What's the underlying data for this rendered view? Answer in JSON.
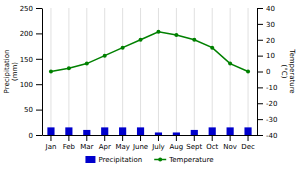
{
  "chart_data": {
    "type": "bar",
    "categories": [
      "Jan",
      "Feb",
      "Mar",
      "Apr",
      "May",
      "June",
      "July",
      "Aug",
      "Sept",
      "Oct",
      "Nov",
      "Dec"
    ],
    "series": [
      {
        "name": "Precipitation",
        "type": "bar",
        "color": "#0000cc",
        "values": [
          15,
          15,
          10,
          15,
          15,
          15,
          5,
          5,
          10,
          15,
          15,
          15
        ]
      },
      {
        "name": "Temperature",
        "type": "line",
        "color": "#008000",
        "marker": "circle",
        "axis": "y2",
        "values": [
          0,
          2,
          5,
          10,
          15,
          20,
          25,
          23,
          20,
          15,
          5,
          0
        ]
      }
    ],
    "y_label": "Precipitation\n(mm)",
    "y2_label": "Temperature\n(°C)",
    "ylim": [
      0,
      250
    ],
    "yticks": [
      0,
      50,
      100,
      150,
      200,
      250
    ],
    "y2lim": [
      -40,
      40
    ],
    "y2ticks": [
      -40,
      -30,
      -20,
      -10,
      0,
      10,
      20,
      30,
      40
    ],
    "grid": "x",
    "legend": "bottom"
  }
}
